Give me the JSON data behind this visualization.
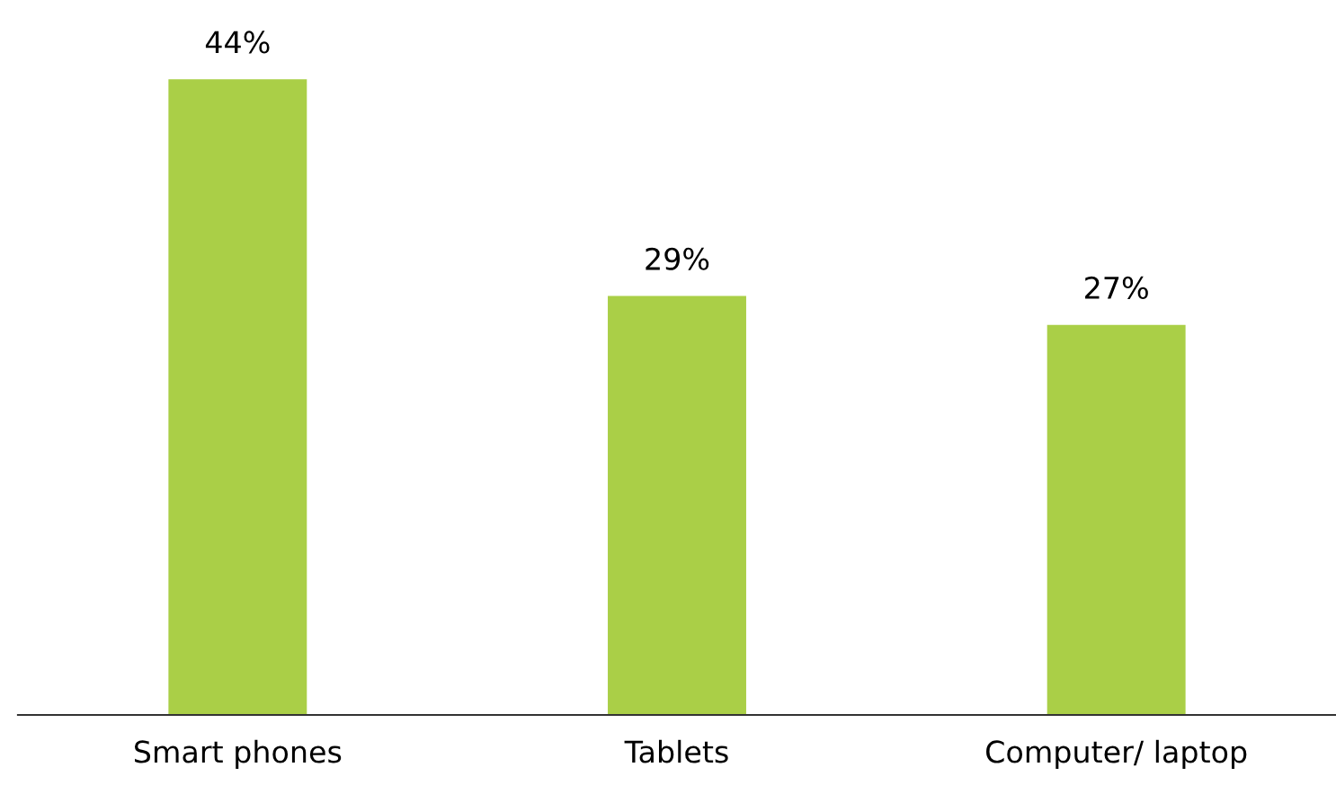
{
  "chart_data": {
    "type": "bar",
    "categories": [
      "Smart phones",
      "Tablets",
      "Computer/ laptop"
    ],
    "values": [
      44,
      29,
      27
    ],
    "value_labels": [
      "44%",
      "29%",
      "27%"
    ],
    "color": "#aacf47",
    "grid": false,
    "legend": false
  }
}
